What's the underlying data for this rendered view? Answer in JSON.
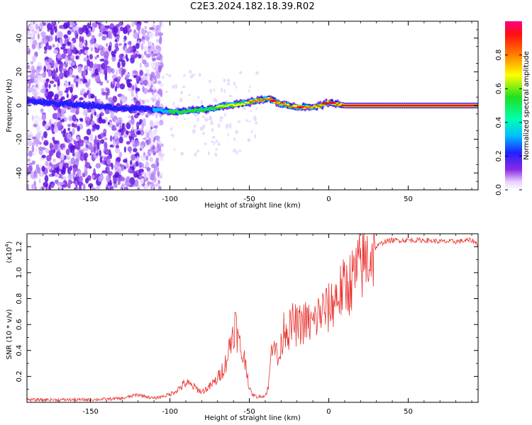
{
  "title": "C2E3.2024.182.18.39.R02",
  "colors": {
    "snr_line": "#e8312c",
    "axis": "#000000"
  },
  "chart_data": [
    {
      "type": "heatmap",
      "xlabel": "Height of straight line (km)",
      "ylabel": "Frequency (Hz)",
      "xlim": [
        -190,
        94
      ],
      "ylim": [
        -50,
        50
      ],
      "x_ticks": [
        -150,
        -100,
        -50,
        0,
        50
      ],
      "y_ticks": [
        -40,
        -20,
        0,
        20,
        40
      ],
      "colorbar": {
        "label": "Normalized spectral amplitude",
        "range": [
          0,
          1
        ],
        "ticks": [
          "0.0",
          "0.2",
          "0.4",
          "0.6",
          "0.8"
        ],
        "ticks_values": [
          0,
          0.2,
          0.4,
          0.6,
          0.8
        ]
      },
      "ridge_frequency": {
        "x": [
          -190,
          -180,
          -165,
          -150,
          -130,
          -115,
          -105,
          -95,
          -85,
          -75,
          -65,
          -55,
          -45,
          -38,
          -30,
          -25,
          -18,
          -12,
          -5,
          0,
          5,
          10,
          20,
          40,
          60,
          94
        ],
        "y": [
          3,
          2,
          1,
          0,
          -2,
          -2,
          -3,
          -4,
          -3,
          -2,
          0,
          1,
          3,
          4,
          1,
          0,
          -1,
          -1,
          0,
          2,
          1,
          0,
          0,
          0,
          0,
          0
        ]
      },
      "noise_region_km": [
        -190,
        -105
      ]
    },
    {
      "type": "line",
      "xlabel": "Height of straight line (km)",
      "ylabel": "SNR (10 * v/v)",
      "y_multiplier_label": "(x10",
      "y_multiplier_exp": "4",
      "xlim": [
        -190,
        94
      ],
      "ylim": [
        0,
        1.3
      ],
      "x_ticks": [
        -150,
        -100,
        -50,
        0,
        50
      ],
      "y_ticks": [
        0.2,
        0.4,
        0.6,
        0.8,
        1.0,
        1.2
      ],
      "y_tick_labels": [
        "0.2",
        "0.4",
        "0.6",
        "0.8",
        "1.0",
        "1.2"
      ],
      "series": [
        {
          "x": [
            -190,
            -170,
            -150,
            -130,
            -120,
            -110,
            -100,
            -95,
            -90,
            -85,
            -80,
            -75,
            -70,
            -65,
            -62,
            -59,
            -57,
            -55,
            -52,
            -50,
            -48,
            -45,
            -42,
            -40,
            -38,
            -35,
            -32,
            -30,
            -28,
            -25,
            -22,
            -20,
            -15,
            -10,
            -5,
            0,
            5,
            10,
            15,
            20,
            25,
            30,
            35,
            40,
            50,
            60,
            70,
            80,
            90,
            94
          ],
          "y": [
            0.02,
            0.02,
            0.02,
            0.03,
            0.06,
            0.03,
            0.06,
            0.1,
            0.15,
            0.12,
            0.08,
            0.12,
            0.18,
            0.3,
            0.45,
            0.62,
            0.48,
            0.38,
            0.3,
            0.1,
            0.06,
            0.04,
            0.05,
            0.05,
            0.12,
            0.55,
            0.3,
            0.42,
            0.6,
            0.55,
            0.62,
            0.58,
            0.62,
            0.6,
            0.7,
            0.72,
            0.82,
            0.88,
            0.95,
            1.05,
            1.12,
            1.2,
            1.24,
            1.25,
            1.25,
            1.25,
            1.24,
            1.24,
            1.25,
            1.22
          ]
        }
      ]
    }
  ]
}
